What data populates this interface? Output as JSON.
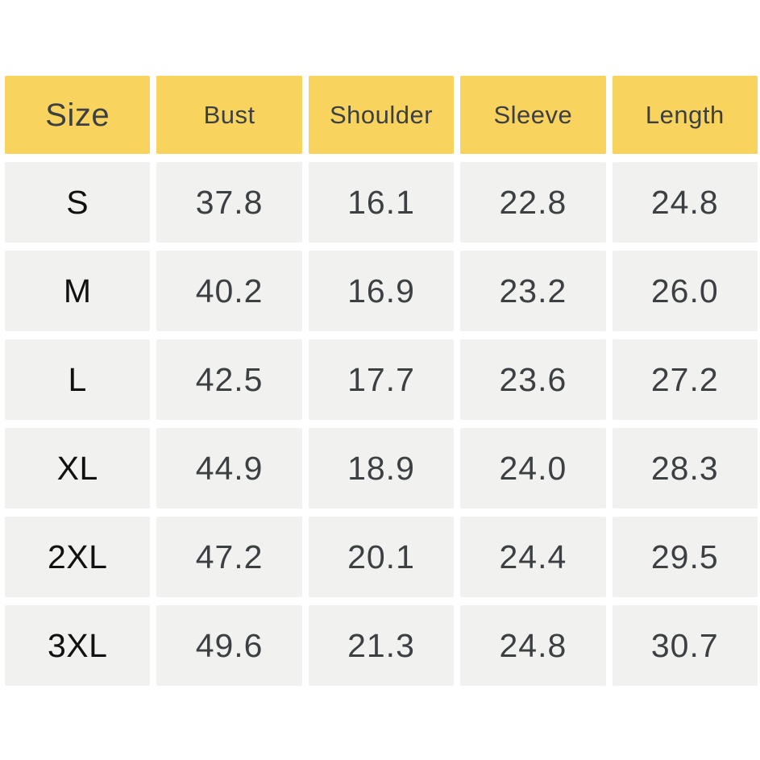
{
  "chart_data": {
    "type": "table",
    "columns": [
      "Size",
      "Bust",
      "Shoulder",
      "Sleeve",
      "Length"
    ],
    "rows": [
      [
        "S",
        "37.8",
        "16.1",
        "22.8",
        "24.8"
      ],
      [
        "M",
        "40.2",
        "16.9",
        "23.2",
        "26.0"
      ],
      [
        "L",
        "42.5",
        "17.7",
        "23.6",
        "27.2"
      ],
      [
        "XL",
        "44.9",
        "18.9",
        "24.0",
        "28.3"
      ],
      [
        "2XL",
        "47.2",
        "20.1",
        "24.4",
        "29.5"
      ],
      [
        "3XL",
        "49.6",
        "21.3",
        "24.8",
        "30.7"
      ]
    ],
    "layout": {
      "header_row": true,
      "grid": "cells separated by white gutters",
      "rows_count": 6,
      "columns_count": 5
    }
  },
  "colors": {
    "background": "#FFFFFF",
    "header_bg": "#F8D45F",
    "cell_bg": "#F1F1F0",
    "header_text": "#3C4043",
    "value_text": "#3C4043",
    "size_text": "#111111"
  }
}
